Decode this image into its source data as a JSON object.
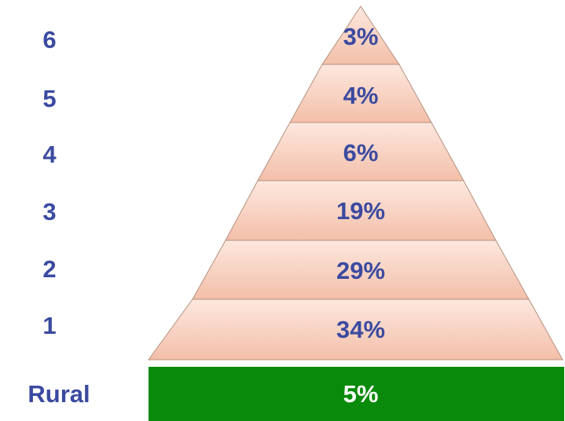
{
  "colors": {
    "tier_fill_top": "#fce3d8",
    "tier_fill_bottom": "#f4c2ad",
    "tier_stroke": "#b5907e",
    "rural_fill": "#0a8a0a",
    "label_text": "#3b4aa0",
    "rural_text": "#ffffff"
  },
  "pyramid": {
    "tiers": [
      {
        "level": "6",
        "value": "3%"
      },
      {
        "level": "5",
        "value": "4%"
      },
      {
        "level": "4",
        "value": "6%"
      },
      {
        "level": "3",
        "value": "19%"
      },
      {
        "level": "2",
        "value": "29%"
      },
      {
        "level": "1",
        "value": "34%"
      }
    ],
    "base": {
      "level": "Rural",
      "value": "5%"
    }
  }
}
